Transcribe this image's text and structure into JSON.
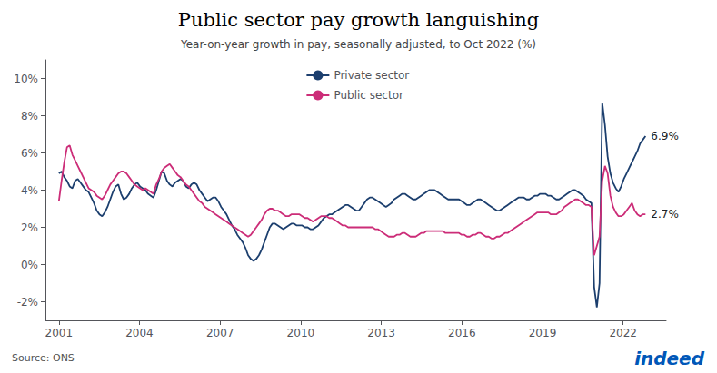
{
  "chart_data": {
    "type": "line",
    "title": "Public sector pay growth languishing",
    "subtitle": "Year-on-year growth in pay, seasonally adjusted, to Oct 2022 (%)",
    "source": "Source: ONS",
    "annotations": [
      "indeed"
    ],
    "grid": false,
    "legend": "upper center",
    "xlim": [
      2000.5,
      2023.6
    ],
    "xticks": [
      2001,
      2004,
      2007,
      2010,
      2013,
      2016,
      2019,
      2022
    ],
    "ylim": [
      -3,
      11
    ],
    "yticks": [
      {
        "value": -2,
        "label": "-2%"
      },
      {
        "value": 0,
        "label": "0%"
      },
      {
        "value": 2,
        "label": "2%"
      },
      {
        "value": 4,
        "label": "4%"
      },
      {
        "value": 6,
        "label": "6%"
      },
      {
        "value": 8,
        "label": "8%"
      },
      {
        "value": 10,
        "label": "10%"
      }
    ],
    "x": [
      2001,
      2001.1006,
      2001.2012,
      2001.3018,
      2001.4025,
      2001.5031,
      2001.6037,
      2001.7043,
      2001.8049,
      2001.9055,
      2002.0061,
      2002.1068,
      2002.2074,
      2002.308,
      2002.4086,
      2002.5092,
      2002.6098,
      2002.7104,
      2002.8111,
      2002.9117,
      2003.0123,
      2003.1129,
      2003.2135,
      2003.3141,
      2003.4147,
      2003.5154,
      2003.616,
      2003.7166,
      2003.8172,
      2003.9178,
      2004.0184,
      2004.119,
      2004.2197,
      2004.3203,
      2004.4209,
      2004.5215,
      2004.6221,
      2004.7227,
      2004.8233,
      2004.924,
      2005.0246,
      2005.1252,
      2005.2258,
      2005.3264,
      2005.427,
      2005.5277,
      2005.6283,
      2005.7289,
      2005.8295,
      2005.9301,
      2006.0307,
      2006.1313,
      2006.232,
      2006.3326,
      2006.4332,
      2006.5338,
      2006.6344,
      2006.735,
      2006.8356,
      2006.9363,
      2007.0369,
      2007.1375,
      2007.2381,
      2007.3387,
      2007.4393,
      2007.5399,
      2007.6406,
      2007.7412,
      2007.8418,
      2007.9424,
      2008.043,
      2008.1436,
      2008.2442,
      2008.3449,
      2008.4455,
      2008.5461,
      2008.6467,
      2008.7473,
      2008.8479,
      2008.9485,
      2009.0492,
      2009.1498,
      2009.2504,
      2009.351,
      2009.4516,
      2009.5522,
      2009.6528,
      2009.7535,
      2009.8541,
      2009.9547,
      2010.0553,
      2010.1559,
      2010.2565,
      2010.3571,
      2010.4578,
      2010.5584,
      2010.659,
      2010.7596,
      2010.8602,
      2010.9608,
      2011.0614,
      2011.1621,
      2011.2627,
      2011.3633,
      2011.4639,
      2011.5645,
      2011.6651,
      2011.7657,
      2011.8664,
      2011.967,
      2012.0676,
      2012.1682,
      2012.2688,
      2012.3694,
      2012.47,
      2012.5707,
      2012.6713,
      2012.7719,
      2012.8725,
      2012.9731,
      2013.0737,
      2013.1743,
      2013.275,
      2013.3756,
      2013.4762,
      2013.5768,
      2013.6774,
      2013.778,
      2013.8786,
      2013.9793,
      2014.0799,
      2014.1805,
      2014.2811,
      2014.3817,
      2014.4823,
      2014.5829,
      2014.6836,
      2014.7842,
      2014.8848,
      2014.9854,
      2015.086,
      2015.1866,
      2015.2873,
      2015.3879,
      2015.4885,
      2015.5891,
      2015.6897,
      2015.7903,
      2015.8909,
      2015.9916,
      2016.0922,
      2016.1928,
      2016.2934,
      2016.394,
      2016.4946,
      2016.5952,
      2016.6959,
      2016.7965,
      2016.8971,
      2016.9977,
      2017.0983,
      2017.1989,
      2017.2995,
      2017.4002,
      2017.5008,
      2017.6014,
      2017.702,
      2017.8026,
      2017.9032,
      2018.0038,
      2018.1045,
      2018.2051,
      2018.3057,
      2018.4063,
      2018.5069,
      2018.6075,
      2018.7081,
      2018.8088,
      2018.9094,
      2019.01,
      2019.1106,
      2019.2112,
      2019.3118,
      2019.4124,
      2019.5131,
      2019.6137,
      2019.7143,
      2019.8149,
      2019.9155,
      2020.0161,
      2020.1167,
      2020.2174,
      2020.318,
      2020.4186,
      2020.5192,
      2020.6198,
      2020.7204,
      2020.821,
      2020.9217,
      2021.0223,
      2021.1229,
      2021.2235,
      2021.3241,
      2021.4247,
      2021.5253,
      2021.626,
      2021.7266,
      2021.8272,
      2021.9278,
      2022.0284,
      2022.129,
      2022.2296,
      2022.3303,
      2022.4309,
      2022.5315,
      2022.6321,
      2022.7327,
      2022.8333
    ],
    "series": [
      {
        "name": "Private sector",
        "color": "#1c3f6e",
        "end_label": "6.9%",
        "values": [
          4.9,
          5.0,
          4.7,
          4.5,
          4.2,
          4.1,
          4.5,
          4.6,
          4.4,
          4.2,
          4.0,
          3.9,
          3.6,
          3.3,
          2.9,
          2.7,
          2.6,
          2.8,
          3.1,
          3.5,
          3.9,
          4.2,
          4.3,
          3.8,
          3.5,
          3.6,
          3.8,
          4.1,
          4.3,
          4.4,
          4.2,
          4.1,
          4.0,
          3.8,
          3.7,
          3.6,
          4.0,
          4.5,
          5.0,
          4.9,
          4.5,
          4.3,
          4.2,
          4.4,
          4.5,
          4.6,
          4.5,
          4.2,
          4.1,
          4.3,
          4.4,
          4.3,
          4.0,
          3.8,
          3.6,
          3.4,
          3.5,
          3.6,
          3.6,
          3.4,
          3.1,
          2.9,
          2.7,
          2.4,
          2.1,
          1.9,
          1.6,
          1.4,
          1.2,
          0.9,
          0.5,
          0.3,
          0.2,
          0.3,
          0.5,
          0.8,
          1.2,
          1.6,
          2.0,
          2.2,
          2.2,
          2.1,
          2.0,
          1.9,
          2.0,
          2.1,
          2.2,
          2.2,
          2.1,
          2.1,
          2.1,
          2.0,
          2.0,
          1.9,
          1.9,
          2.0,
          2.1,
          2.3,
          2.5,
          2.6,
          2.7,
          2.7,
          2.8,
          2.9,
          3.0,
          3.1,
          3.2,
          3.2,
          3.1,
          3.0,
          2.9,
          2.9,
          3.1,
          3.3,
          3.5,
          3.6,
          3.6,
          3.5,
          3.4,
          3.3,
          3.2,
          3.1,
          3.2,
          3.3,
          3.5,
          3.6,
          3.7,
          3.8,
          3.8,
          3.7,
          3.6,
          3.5,
          3.5,
          3.6,
          3.7,
          3.8,
          3.9,
          4.0,
          4.0,
          4.0,
          3.9,
          3.8,
          3.7,
          3.6,
          3.5,
          3.5,
          3.5,
          3.5,
          3.5,
          3.4,
          3.3,
          3.2,
          3.2,
          3.3,
          3.4,
          3.5,
          3.5,
          3.4,
          3.3,
          3.2,
          3.1,
          3.0,
          2.9,
          2.9,
          3.0,
          3.1,
          3.2,
          3.3,
          3.4,
          3.5,
          3.6,
          3.6,
          3.6,
          3.5,
          3.5,
          3.6,
          3.7,
          3.7,
          3.8,
          3.8,
          3.8,
          3.7,
          3.7,
          3.6,
          3.5,
          3.5,
          3.6,
          3.7,
          3.8,
          3.9,
          4.0,
          4.0,
          3.9,
          3.8,
          3.7,
          3.5,
          3.4,
          3.3,
          -1.2,
          -2.3,
          -1.0,
          8.7,
          7.5,
          5.8,
          4.9,
          4.4,
          4.1,
          3.9,
          4.2,
          4.6,
          4.9,
          5.2,
          5.5,
          5.8,
          6.1,
          6.5,
          6.7,
          6.9
        ]
      },
      {
        "name": "Public sector",
        "color": "#cc2d78",
        "end_label": "2.7%",
        "values": [
          3.4,
          4.5,
          5.5,
          6.3,
          6.4,
          5.9,
          5.6,
          5.3,
          5.0,
          4.7,
          4.4,
          4.1,
          4.0,
          3.9,
          3.7,
          3.6,
          3.5,
          3.7,
          4.0,
          4.3,
          4.5,
          4.7,
          4.9,
          5.0,
          5.0,
          4.9,
          4.7,
          4.5,
          4.3,
          4.2,
          4.1,
          4.0,
          4.1,
          4.0,
          3.9,
          3.8,
          4.3,
          4.6,
          5.0,
          5.2,
          5.3,
          5.4,
          5.2,
          5.0,
          4.8,
          4.7,
          4.5,
          4.3,
          4.2,
          4.0,
          3.8,
          3.6,
          3.4,
          3.3,
          3.1,
          3.0,
          2.9,
          2.8,
          2.7,
          2.6,
          2.5,
          2.4,
          2.3,
          2.2,
          2.1,
          2.0,
          1.9,
          1.8,
          1.7,
          1.6,
          1.5,
          1.6,
          1.8,
          2.0,
          2.2,
          2.4,
          2.7,
          2.9,
          3.0,
          3.0,
          2.9,
          2.9,
          2.8,
          2.7,
          2.6,
          2.6,
          2.7,
          2.7,
          2.7,
          2.7,
          2.6,
          2.5,
          2.5,
          2.4,
          2.3,
          2.4,
          2.5,
          2.6,
          2.6,
          2.6,
          2.5,
          2.5,
          2.4,
          2.3,
          2.2,
          2.1,
          2.1,
          2.0,
          2.0,
          2.0,
          2.0,
          2.0,
          2.0,
          2.0,
          2.0,
          2.0,
          2.0,
          1.9,
          1.9,
          1.8,
          1.7,
          1.6,
          1.5,
          1.5,
          1.5,
          1.6,
          1.6,
          1.7,
          1.7,
          1.6,
          1.5,
          1.5,
          1.5,
          1.6,
          1.7,
          1.7,
          1.8,
          1.8,
          1.8,
          1.8,
          1.8,
          1.8,
          1.8,
          1.7,
          1.7,
          1.7,
          1.7,
          1.7,
          1.7,
          1.6,
          1.6,
          1.5,
          1.5,
          1.6,
          1.6,
          1.7,
          1.7,
          1.6,
          1.5,
          1.5,
          1.4,
          1.4,
          1.5,
          1.5,
          1.6,
          1.7,
          1.7,
          1.8,
          1.9,
          2.0,
          2.1,
          2.2,
          2.3,
          2.4,
          2.5,
          2.6,
          2.7,
          2.8,
          2.8,
          2.8,
          2.8,
          2.8,
          2.7,
          2.7,
          2.7,
          2.8,
          2.9,
          3.1,
          3.2,
          3.3,
          3.4,
          3.5,
          3.5,
          3.4,
          3.3,
          3.2,
          3.2,
          3.1,
          0.5,
          1.0,
          1.5,
          4.5,
          5.3,
          4.9,
          3.7,
          3.1,
          2.8,
          2.6,
          2.6,
          2.7,
          2.9,
          3.1,
          3.3,
          2.9,
          2.7,
          2.6,
          2.7,
          2.7
        ]
      }
    ]
  }
}
